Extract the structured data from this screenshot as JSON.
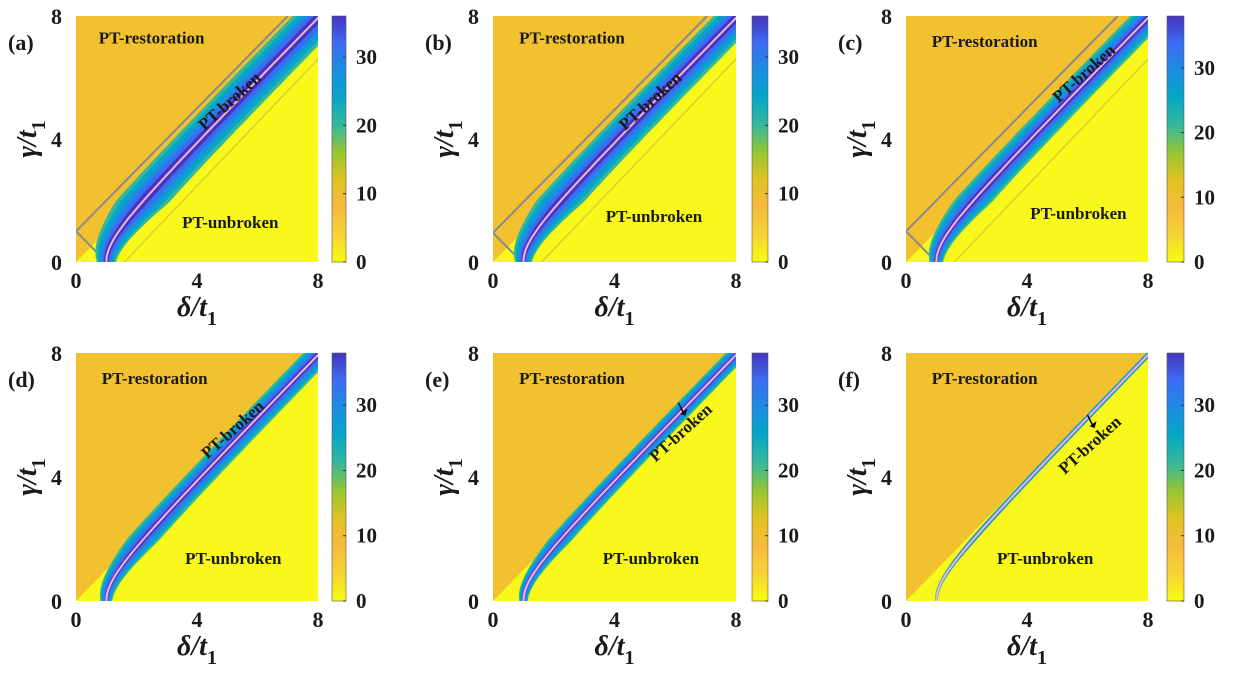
{
  "chart_data": [
    {
      "type": "heatmap",
      "panel": "(a)",
      "xlabel": "δ/t1",
      "ylabel": "γ/t1",
      "xlim": [
        0,
        8
      ],
      "ylim": [
        0,
        8
      ],
      "xticks": [
        "0",
        "4",
        "8"
      ],
      "yticks": [
        "0",
        "4",
        "8"
      ],
      "colorbar": {
        "range": [
          0,
          36
        ],
        "ticks": [
          "0",
          "10",
          "20",
          "30"
        ]
      },
      "regions": [
        {
          "label": "PT-restoration",
          "x": 2.5,
          "y": 7.1,
          "rotation": 0
        },
        {
          "label": "PT-broken",
          "x": 5.2,
          "y": 5.1,
          "rotation": -42
        },
        {
          "label": "PT-unbroken",
          "x": 5.1,
          "y": 1.1,
          "rotation": 0
        }
      ],
      "boundary": {
        "type": "wedge",
        "width": 1.0
      },
      "band_width": 0.9,
      "arrow": false
    },
    {
      "type": "heatmap",
      "panel": "(b)",
      "xlabel": "δ/t1",
      "ylabel": "γ/t1",
      "xlim": [
        0,
        8
      ],
      "ylim": [
        0,
        8
      ],
      "xticks": [
        "0",
        "4",
        "8"
      ],
      "yticks": [
        "0",
        "4",
        "8"
      ],
      "colorbar": {
        "range": [
          0,
          36
        ],
        "ticks": [
          "0",
          "10",
          "20",
          "30"
        ]
      },
      "regions": [
        {
          "label": "PT-restoration",
          "x": 2.6,
          "y": 7.1,
          "rotation": 0
        },
        {
          "label": "PT-broken",
          "x": 5.3,
          "y": 5.1,
          "rotation": -42
        },
        {
          "label": "PT-unbroken",
          "x": 5.3,
          "y": 1.3,
          "rotation": 0
        }
      ],
      "boundary": {
        "type": "wedge",
        "width": 0.95
      },
      "band_width": 0.8,
      "arrow": false
    },
    {
      "type": "heatmap",
      "panel": "(c)",
      "xlabel": "δ/t1",
      "ylabel": "γ/t1",
      "xlim": [
        0,
        8
      ],
      "ylim": [
        0,
        8
      ],
      "xticks": [
        "0",
        "4",
        "8"
      ],
      "yticks": [
        "0",
        "4",
        "8"
      ],
      "colorbar": {
        "range": [
          0,
          38
        ],
        "ticks": [
          "0",
          "10",
          "20",
          "30"
        ]
      },
      "regions": [
        {
          "label": "PT-restoration",
          "x": 2.6,
          "y": 7.0,
          "rotation": 0
        },
        {
          "label": "PT-broken",
          "x": 6.0,
          "y": 6.0,
          "rotation": -42
        },
        {
          "label": "PT-unbroken",
          "x": 5.7,
          "y": 1.4,
          "rotation": 0
        }
      ],
      "boundary": {
        "type": "wedge",
        "width": 1.0
      },
      "band_width": 0.65,
      "arrow": false
    },
    {
      "type": "heatmap",
      "panel": "(d)",
      "xlabel": "δ/t1",
      "ylabel": "γ/t1",
      "xlim": [
        0,
        8
      ],
      "ylim": [
        0,
        8
      ],
      "xticks": [
        "0",
        "4",
        "8"
      ],
      "yticks": [
        "0",
        "4",
        "8"
      ],
      "colorbar": {
        "range": [
          0,
          38
        ],
        "ticks": [
          "0",
          "10",
          "20",
          "30"
        ]
      },
      "regions": [
        {
          "label": "PT-restoration",
          "x": 2.6,
          "y": 7.0,
          "rotation": 0
        },
        {
          "label": "PT-broken",
          "x": 5.3,
          "y": 5.4,
          "rotation": -42
        },
        {
          "label": "PT-unbroken",
          "x": 5.2,
          "y": 1.2,
          "rotation": 0
        }
      ],
      "boundary": {
        "type": "none",
        "width": 0
      },
      "band_width": 0.55,
      "arrow": false
    },
    {
      "type": "heatmap",
      "panel": "(e)",
      "xlabel": "δ/t1",
      "ylabel": "γ/t1",
      "xlim": [
        0,
        8
      ],
      "ylim": [
        0,
        8
      ],
      "xticks": [
        "0",
        "4",
        "8"
      ],
      "yticks": [
        "0",
        "4",
        "8"
      ],
      "colorbar": {
        "range": [
          0,
          38
        ],
        "ticks": [
          "0",
          "10",
          "20",
          "30"
        ]
      },
      "regions": [
        {
          "label": "PT-restoration",
          "x": 2.6,
          "y": 7.0,
          "rotation": 0
        },
        {
          "label": "PT-broken",
          "x": 6.3,
          "y": 5.3,
          "rotation": -42
        },
        {
          "label": "PT-unbroken",
          "x": 5.2,
          "y": 1.2,
          "rotation": 0
        }
      ],
      "boundary": {
        "type": "none",
        "width": 0
      },
      "band_width": 0.4,
      "arrow": true
    },
    {
      "type": "heatmap",
      "panel": "(f)",
      "xlabel": "δ/t1",
      "ylabel": "γ/t1",
      "xlim": [
        0,
        8
      ],
      "ylim": [
        0,
        8
      ],
      "xticks": [
        "0",
        "4",
        "8"
      ],
      "yticks": [
        "0",
        "4",
        "8"
      ],
      "colorbar": {
        "range": [
          0,
          38
        ],
        "ticks": [
          "0",
          "10",
          "20",
          "30"
        ]
      },
      "regions": [
        {
          "label": "PT-restoration",
          "x": 2.6,
          "y": 7.0,
          "rotation": 0
        },
        {
          "label": "PT-broken",
          "x": 6.2,
          "y": 4.9,
          "rotation": -42
        },
        {
          "label": "PT-unbroken",
          "x": 4.6,
          "y": 1.2,
          "rotation": 0
        }
      ],
      "boundary": {
        "type": "none",
        "width": 0
      },
      "band_width": 0.12,
      "arrow": true
    }
  ],
  "colors": {
    "restoration": "#f2c130",
    "unbroken": "#f8f81c",
    "peak_line": "#f3b4d8",
    "boundary_line": "#8a8a8a",
    "text": "#1a1a1a",
    "colormap": [
      "#f9fb0e",
      "#f7d336",
      "#f5ba3c",
      "#e2c222",
      "#97c631",
      "#35b79b",
      "#06a7c6",
      "#1a8ee2",
      "#3c6cf2",
      "#4435be"
    ]
  }
}
